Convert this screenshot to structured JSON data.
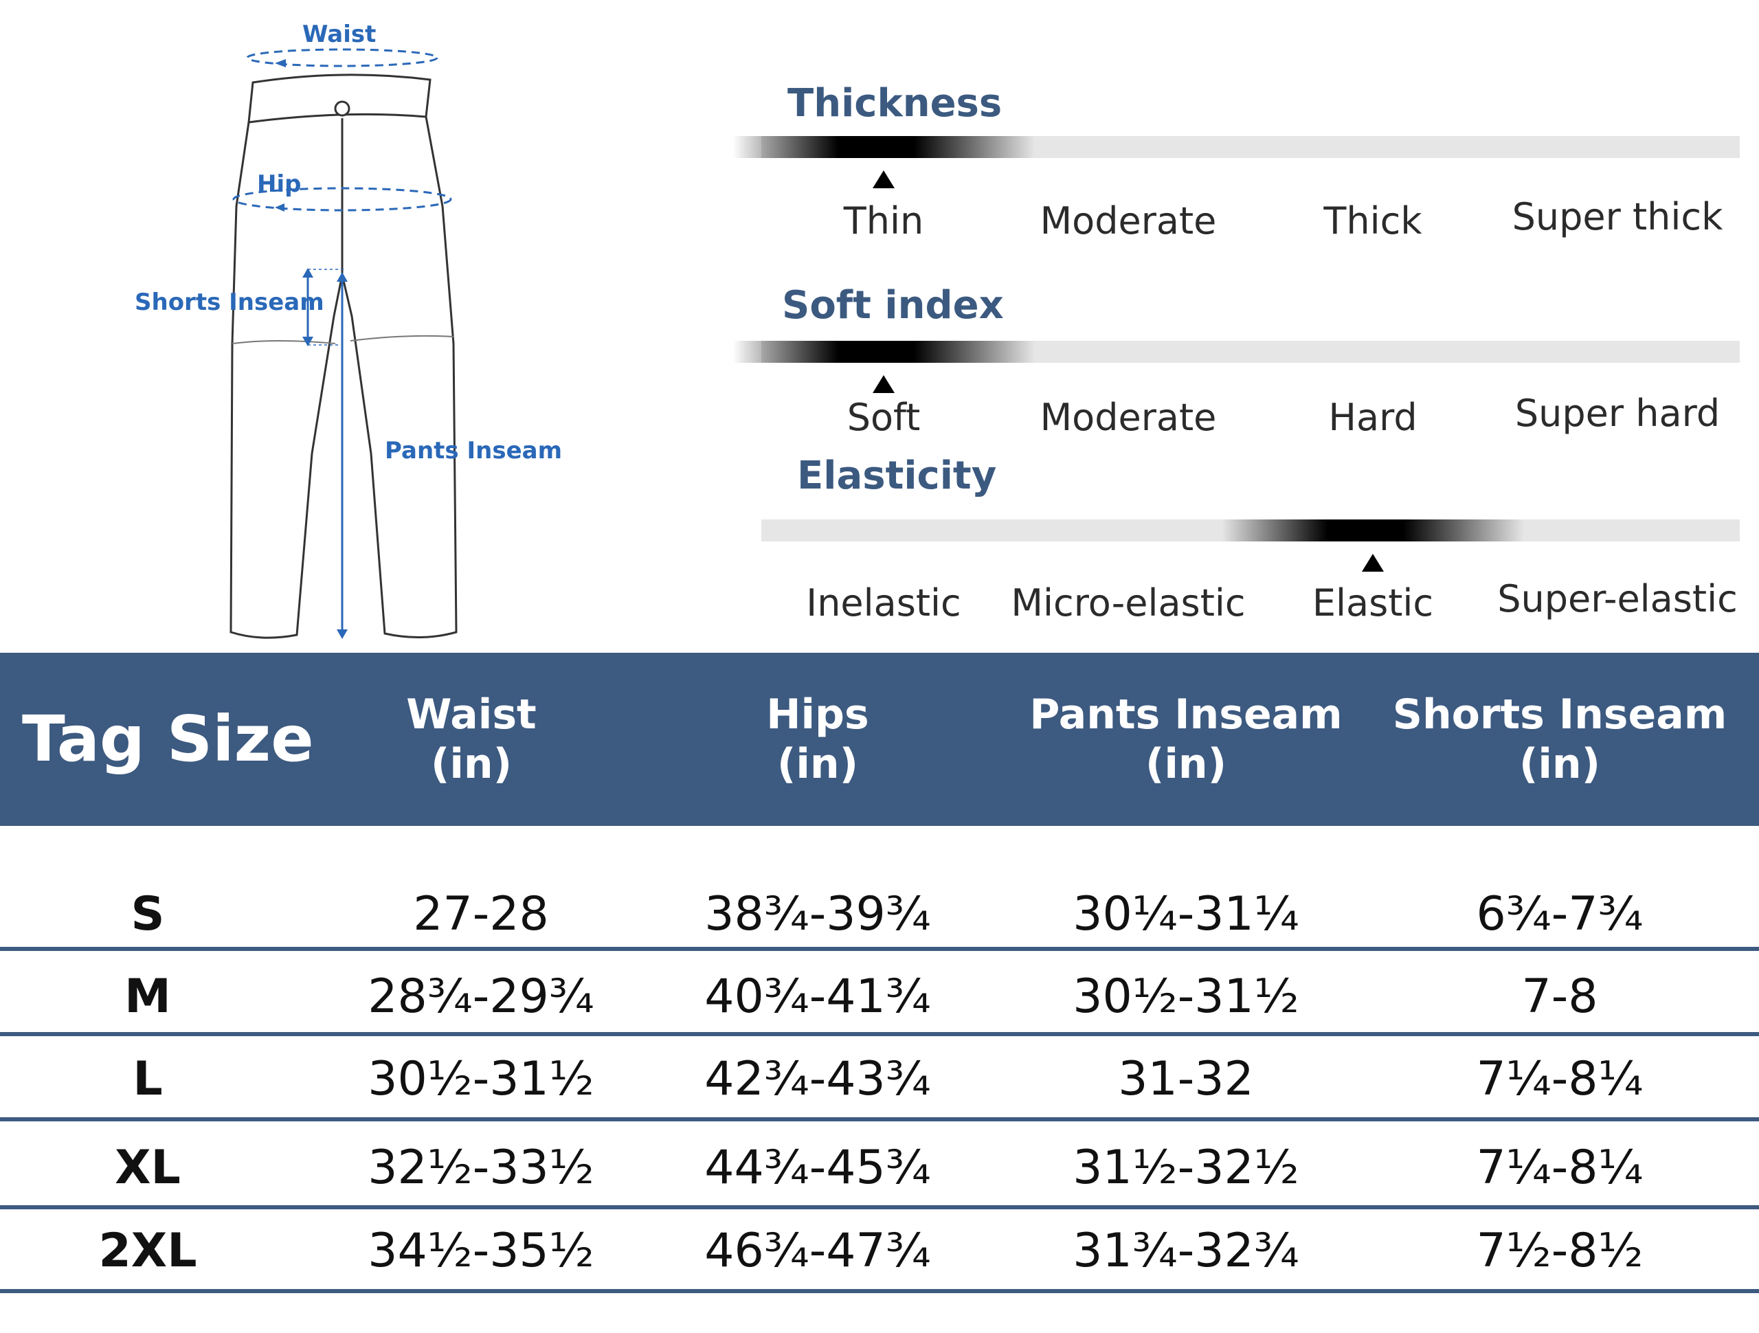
{
  "diagram": {
    "labels": {
      "waist": "Waist",
      "hip": "Hip",
      "shorts_inseam": "Shorts Inseam",
      "pants_inseam": "Pants Inseam"
    },
    "accent_color": "#2a68b8"
  },
  "scales": [
    {
      "title": "Thickness",
      "options": [
        "Thin",
        "Moderate",
        "Thick",
        "Super thick"
      ],
      "selected_index": 0
    },
    {
      "title": "Soft index",
      "options": [
        "Soft",
        "Moderate",
        "Hard",
        "Super hard"
      ],
      "selected_index": 0
    },
    {
      "title": "Elasticity",
      "options": [
        "Inelastic",
        "Micro-elastic",
        "Elastic",
        "Super-elastic"
      ],
      "selected_index": 2
    }
  ],
  "size_table": {
    "header_color": "#3d5a80",
    "columns": [
      {
        "line1": "Tag Size",
        "line2": ""
      },
      {
        "line1": "Waist",
        "line2": "(in)"
      },
      {
        "line1": "Hips",
        "line2": "(in)"
      },
      {
        "line1": "Pants Inseam",
        "line2": "(in)"
      },
      {
        "line1": "Shorts Inseam",
        "line2": "(in)"
      }
    ],
    "rows": [
      [
        "S",
        "27-28",
        "38¾-39¾",
        "30¼-31¼",
        "6¾-7¾"
      ],
      [
        "M",
        "28¾-29¾",
        "40¾-41¾",
        "30½-31½",
        "7-8"
      ],
      [
        "L",
        "30½-31½",
        "42¾-43¾",
        "31-32",
        "7¼-8¼"
      ],
      [
        "XL",
        "32½-33½",
        "44¾-45¾",
        "31½-32½",
        "7¼-8¼"
      ],
      [
        "2XL",
        "34½-35½",
        "46¾-47¾",
        "31¾-32¾",
        "7½-8½"
      ]
    ]
  }
}
